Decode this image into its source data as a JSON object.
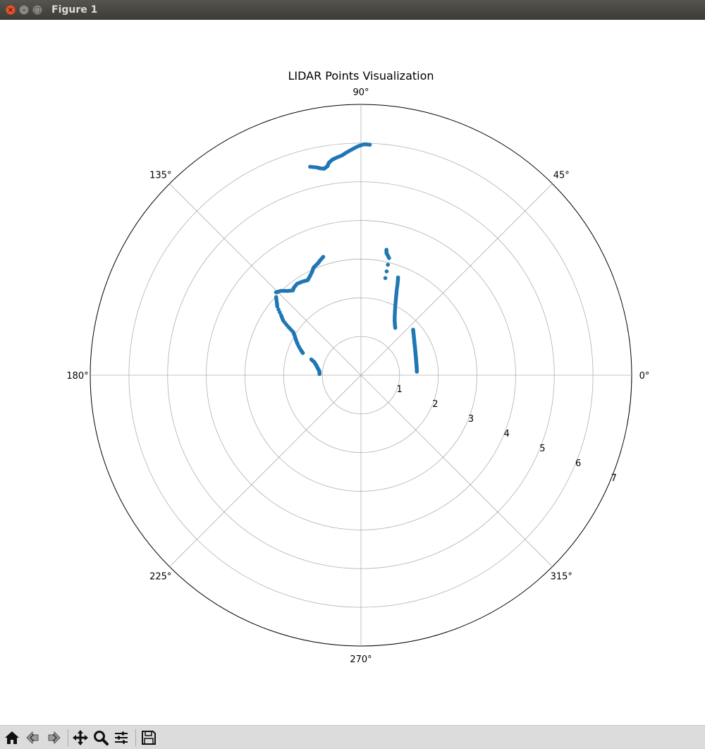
{
  "window": {
    "title": "Figure 1",
    "close_icon": "close-icon",
    "minimize_icon": "minimize-icon",
    "maximize_icon": "maximize-icon"
  },
  "toolbar": {
    "buttons": [
      {
        "name": "home-icon",
        "tooltip": "Reset original view"
      },
      {
        "name": "back-icon",
        "tooltip": "Back to previous view"
      },
      {
        "name": "forward-icon",
        "tooltip": "Forward to next view"
      },
      {
        "name": "pan-icon",
        "tooltip": "Pan axes"
      },
      {
        "name": "zoom-icon",
        "tooltip": "Zoom to rectangle"
      },
      {
        "name": "configure-subplots-icon",
        "tooltip": "Configure subplots"
      },
      {
        "name": "save-icon",
        "tooltip": "Save the figure"
      }
    ]
  },
  "chart_data": {
    "type": "scatter",
    "projection": "polar",
    "title": "LIDAR Points Visualization",
    "theta_tick_labels": [
      "0°",
      "45°",
      "90°",
      "135°",
      "180°",
      "225°",
      "270°",
      "315°"
    ],
    "theta_ticks_deg": [
      0,
      45,
      90,
      135,
      180,
      225,
      270,
      315
    ],
    "r_tick_labels": [
      "1",
      "2",
      "3",
      "4",
      "5",
      "6",
      "7"
    ],
    "r_ticks": [
      1,
      2,
      3,
      4,
      5,
      6,
      7
    ],
    "r_label_angle_deg": 22.5,
    "rlim": [
      0,
      7
    ],
    "grid": true,
    "point_color": "#1f77b4",
    "series": [
      {
        "segments": [
          {
            "label_hint": "right-wall",
            "points": [
              [
                1.448,
                3.6
              ],
              [
                1.452,
                6.6
              ],
              [
                1.458,
                9.5
              ],
              [
                1.466,
                12.4
              ],
              [
                1.478,
                15.3
              ],
              [
                1.494,
                18.1
              ],
              [
                1.512,
                20.9
              ],
              [
                1.534,
                23.6
              ],
              [
                1.559,
                26.2
              ],
              [
                1.586,
                28.7
              ],
              [
                1.617,
                31.2
              ],
              [
                1.653,
                33.7
              ],
              [
                1.694,
                36.2
              ],
              [
                1.74,
                38.7
              ],
              [
                1.79,
                41.1
              ]
            ]
          },
          {
            "label_hint": "right-inner",
            "points": [
              [
                1.512,
                54.1
              ],
              [
                1.584,
                56.4
              ],
              [
                1.662,
                58.4
              ],
              [
                1.762,
                60.3
              ],
              [
                1.872,
                62.0
              ],
              [
                1.994,
                63.6
              ],
              [
                2.128,
                65.0
              ],
              [
                2.261,
                66.2
              ],
              [
                2.401,
                67.3
              ],
              [
                2.566,
                68.3
              ],
              [
                2.702,
                69.2
              ]
            ]
          },
          {
            "label_hint": "right-sparse",
            "points": [
              [
                2.589,
                75.9
              ],
              [
                3.114,
                76.5
              ],
              [
                3.227,
                78.2
              ],
              [
                3.307,
                78.5
              ]
            ]
          },
          {
            "label_hint": "top-wall",
            "points": [
              [
                5.962,
                87.8
              ],
              [
                5.97,
                89.2
              ],
              [
                5.92,
                90.7
              ],
              [
                5.84,
                92.3
              ],
              [
                5.759,
                93.9
              ],
              [
                5.7,
                95.0
              ],
              [
                5.65,
                96.7
              ],
              [
                5.618,
                97.6
              ],
              [
                5.553,
                98.6
              ],
              [
                5.471,
                99.1
              ],
              [
                5.422,
                100.1
              ],
              [
                5.452,
                101.2
              ],
              [
                5.49,
                102.0
              ],
              [
                5.545,
                103.7
              ]
            ]
          },
          {
            "label_hint": "left-room-top",
            "points": [
              [
                3.211,
                107.7
              ],
              [
                3.152,
                109.5
              ],
              [
                3.092,
                111.3
              ],
              [
                3.05,
                113.3
              ],
              [
                3.028,
                114.0
              ],
              [
                2.951,
                115.4
              ],
              [
                2.874,
                117.4
              ],
              [
                2.815,
                119.3
              ],
              [
                2.856,
                122.2
              ],
              [
                2.883,
                125.0
              ],
              [
                2.848,
                127.6
              ],
              [
                2.81,
                128.8
              ],
              [
                2.894,
                131.2
              ],
              [
                3.005,
                133.5
              ],
              [
                3.068,
                135.7
              ]
            ]
          },
          {
            "label_hint": "left-room-side",
            "points": [
              [
                2.98,
                137.4
              ],
              [
                2.867,
                139.3
              ],
              [
                2.8,
                140.6
              ],
              [
                2.582,
                143.1
              ],
              [
                2.45,
                145.0
              ],
              [
                2.248,
                146.4
              ],
              [
                2.076,
                147.5
              ],
              [
                1.983,
                149.5
              ],
              [
                1.908,
                151.6
              ],
              [
                1.823,
                153.9
              ],
              [
                1.682,
                157.4
              ],
              [
                1.608,
                159.1
              ]
            ]
          },
          {
            "label_hint": "left-room-bottom",
            "points": [
              [
                1.346,
                162.4
              ],
              [
                1.253,
                164.3
              ],
              [
                1.186,
                167.3
              ],
              [
                1.142,
                170.1
              ],
              [
                1.097,
                173.2
              ],
              [
                1.075,
                175.3
              ],
              [
                1.073,
                178.4
              ]
            ]
          }
        ]
      }
    ]
  }
}
